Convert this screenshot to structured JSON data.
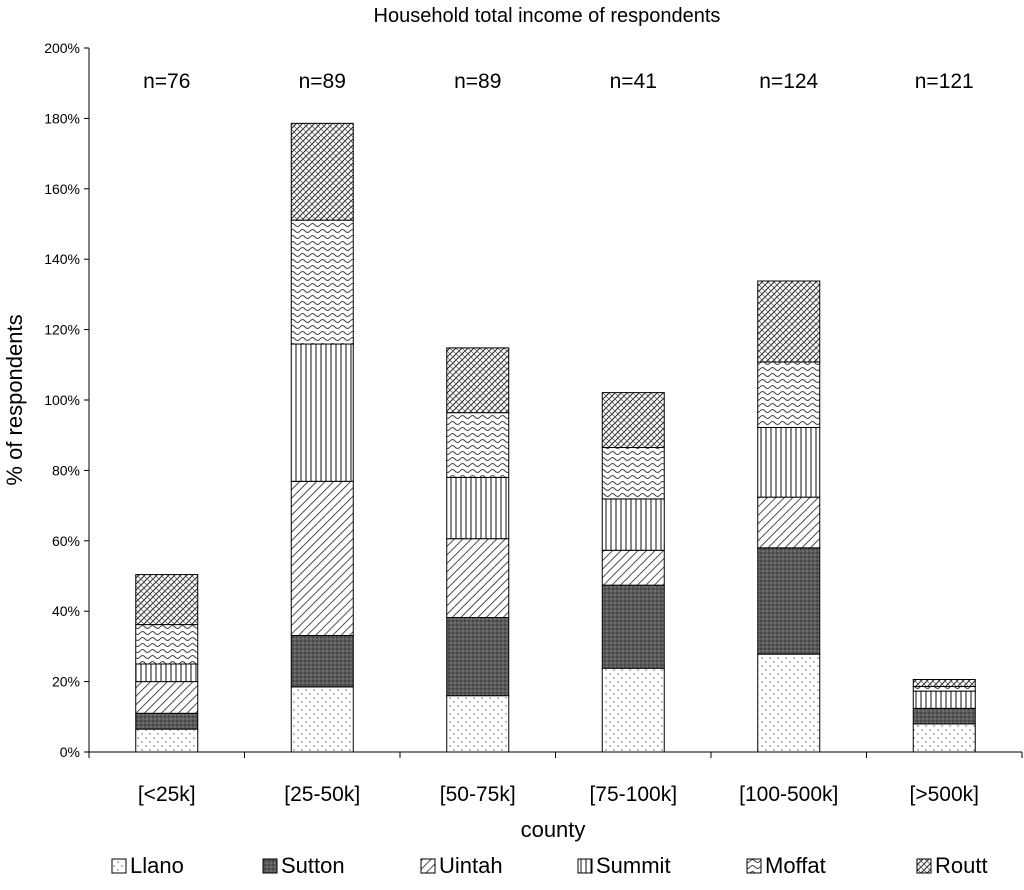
{
  "chart_data": {
    "type": "bar",
    "stacked": true,
    "title": "Household total income of respondents",
    "xlabel": "county",
    "ylabel": "% of respondents",
    "ylim": [
      0,
      200
    ],
    "yticks": [
      "0%",
      "20%",
      "40%",
      "60%",
      "80%",
      "100%",
      "120%",
      "140%",
      "160%",
      "180%",
      "200%"
    ],
    "categories": [
      "[<25k]",
      "[25-50k]",
      "[50-75k]",
      "[75-100k]",
      "[100-500k]",
      "[>500k]"
    ],
    "annotations": [
      "n=76",
      "n=89",
      "n=89",
      "n=41",
      "n=124",
      "n=121"
    ],
    "series": [
      {
        "name": "Llano",
        "values": [
          6.5,
          18.5,
          16.0,
          23.8,
          27.8,
          8.0
        ]
      },
      {
        "name": "Sutton",
        "values": [
          4.5,
          14.6,
          22.2,
          23.6,
          30.2,
          4.4
        ]
      },
      {
        "name": "Uintah",
        "values": [
          9.0,
          43.8,
          22.4,
          9.9,
          14.4,
          0.0
        ]
      },
      {
        "name": "Summit",
        "values": [
          5.0,
          39.0,
          17.4,
          14.6,
          19.8,
          4.9
        ]
      },
      {
        "name": "Moffat",
        "values": [
          11.2,
          35.2,
          18.4,
          14.6,
          18.6,
          1.3
        ]
      },
      {
        "name": "Routt",
        "values": [
          14.2,
          27.5,
          18.4,
          15.6,
          23.0,
          2.0
        ]
      }
    ],
    "legend_position": "bottom",
    "grid": false
  }
}
